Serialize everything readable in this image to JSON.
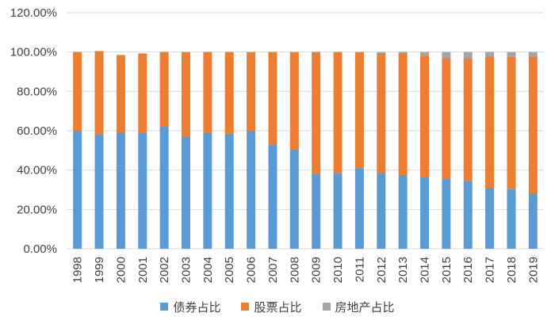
{
  "chart_data": {
    "type": "bar",
    "stacked": true,
    "title": "",
    "xlabel": "",
    "ylabel": "",
    "ylim": [
      0,
      120
    ],
    "grid": true,
    "yticks": [
      "0.00%",
      "20.00%",
      "40.00%",
      "60.00%",
      "80.00%",
      "100.00%",
      "120.00%"
    ],
    "categories": [
      "1998",
      "1999",
      "2000",
      "2001",
      "2002",
      "2003",
      "2004",
      "2005",
      "2006",
      "2007",
      "2008",
      "2009",
      "2010",
      "2011",
      "2012",
      "2013",
      "2014",
      "2015",
      "2016",
      "2017",
      "2018",
      "2019"
    ],
    "series": [
      {
        "name": "债券占比",
        "color": "#5b9bd5",
        "values": [
          60,
          58,
          59,
          59,
          62,
          57,
          59,
          58.5,
          60,
          53,
          50.5,
          38,
          38.5,
          41,
          38.5,
          37.5,
          36.5,
          35.5,
          34.5,
          31,
          30.5,
          28
        ]
      },
      {
        "name": "股票占比",
        "color": "#ed7d31",
        "values": [
          40,
          42.5,
          39.5,
          40.3,
          38,
          43,
          41,
          41.5,
          40,
          47,
          49.5,
          62,
          61.5,
          59,
          61,
          62,
          61.7,
          61.5,
          62.5,
          66.8,
          67.2,
          69.8
        ]
      },
      {
        "name": "房地产占比",
        "color": "#a5a5a5",
        "values": [
          0,
          0,
          0,
          0,
          0,
          0,
          0,
          0,
          0,
          0,
          0,
          0,
          0,
          0,
          0.5,
          0.6,
          1.8,
          3,
          3,
          2.2,
          2.3,
          2.2
        ]
      }
    ],
    "legend": "bottom"
  }
}
